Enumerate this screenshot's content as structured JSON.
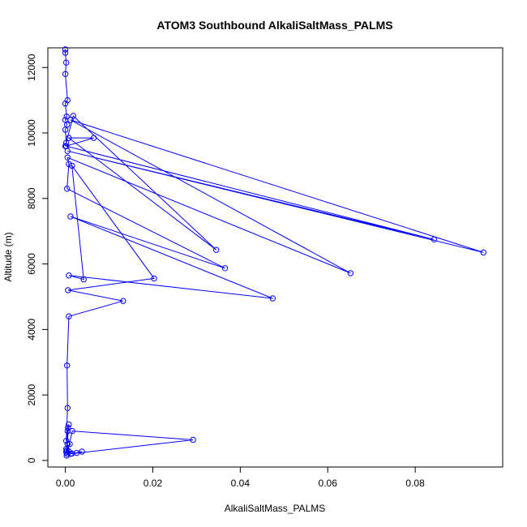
{
  "chart_data": {
    "type": "line",
    "title": "ATOM3 Southbound AlkaliSaltMass_PALMS",
    "xlabel": "AlkaliSaltMass_PALMS",
    "ylabel": "Altitude (m)",
    "xlim": [
      -0.004,
      0.1
    ],
    "ylim": [
      -200,
      12600
    ],
    "x_ticks": [
      0,
      0.02,
      0.04,
      0.06,
      0.08
    ],
    "x_tick_labels": [
      "0.00",
      "0.02",
      "0.04",
      "0.06",
      "0.08"
    ],
    "y_ticks": [
      0,
      2000,
      4000,
      6000,
      8000,
      10000,
      12000
    ],
    "y_tick_labels": [
      "0",
      "2000",
      "4000",
      "6000",
      "8000",
      "10000",
      "12000"
    ],
    "grid": false,
    "series": [
      {
        "color": "#0000ff",
        "x": [
          0,
          0,
          0.0002,
          0,
          0.0005,
          0,
          0.0003,
          0,
          0.0004,
          0,
          0.0002,
          0,
          0.0018,
          0.0345,
          0.0008,
          0.0065,
          0.0002,
          0.0843,
          0.0005,
          0.0956,
          0.0012,
          0.0652,
          0.0005,
          0.0008,
          0.0004,
          0.0365,
          0.0012,
          0.0474,
          0.0008,
          0.0042,
          0.0015,
          0.0203,
          0.0006,
          0.0132,
          0.0008,
          0.0004,
          0.0005,
          0.0002,
          0.0008,
          0.0003,
          0.0005,
          0.0002,
          0.0005,
          0.0003,
          0.0006,
          0.0004,
          0.0016,
          0.0292,
          0.0012,
          0.0038,
          0.0026,
          0.0015,
          0.0008,
          0.0002,
          0.001
        ],
        "y": [
          12550,
          12450,
          12150,
          11800,
          11000,
          10900,
          10500,
          10400,
          10250,
          10100,
          9700,
          9600,
          10520,
          6430,
          9850,
          9850,
          9600,
          6750,
          9450,
          6350,
          10400,
          5720,
          9250,
          9050,
          8300,
          5870,
          7450,
          4950,
          5650,
          5530,
          9000,
          5560,
          5200,
          4870,
          4400,
          2900,
          1600,
          600,
          1100,
          300,
          900,
          250,
          500,
          150,
          1000,
          200,
          900,
          630,
          200,
          270,
          230,
          210,
          280,
          350,
          500
        ]
      }
    ]
  }
}
